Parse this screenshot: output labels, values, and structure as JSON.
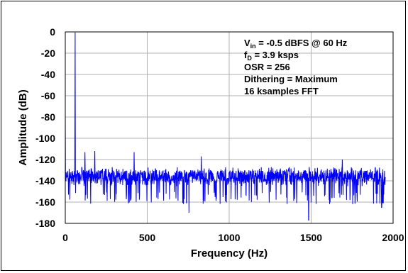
{
  "chart_data": {
    "type": "line",
    "title": "",
    "xlabel": "Frequency (Hz)",
    "ylabel": "Amplitude (dB)",
    "xlim": [
      0,
      2000
    ],
    "ylim": [
      -180,
      0
    ],
    "x_ticks": [
      "0",
      "500",
      "1000",
      "1500",
      "2000"
    ],
    "y_ticks": [
      "0",
      "-20",
      "-40",
      "-60",
      "-80",
      "-100",
      "-120",
      "-140",
      "-160",
      "-180"
    ],
    "grid": true,
    "series_color": "#0000ff",
    "annotations": [
      "V_in = -0.5 dBFS @ 60 Hz",
      "f_D = 3.9 ksps",
      "OSR = 256",
      "Dithering = Maximum",
      "16 ksamples FFT"
    ],
    "annotation_parts": {
      "vin_main": "V",
      "vin_sub": "in",
      "vin_rest": " = -0.5 dBFS @ 60 Hz",
      "fd_main": "f",
      "fd_sub": "D",
      "fd_rest": " = 3.9 ksps",
      "osr": "OSR = 256",
      "dither": "Dithering = Maximum",
      "fft": "16 ksamples FFT"
    },
    "fundamental": {
      "x": 60,
      "y": -0.5
    },
    "dc_bin": {
      "x": 0,
      "y": -76
    },
    "spurs": [
      {
        "x": 120,
        "y": -113
      },
      {
        "x": 180,
        "y": -112
      },
      {
        "x": 420,
        "y": -113
      },
      {
        "x": 830,
        "y": -117
      },
      {
        "x": 1690,
        "y": -120
      }
    ],
    "noise_floor": {
      "x_start": 0,
      "x_end": 1953,
      "typical": -135,
      "band_top": -127,
      "band_bottom": -145,
      "min_dip": -177
    },
    "noise_dips": [
      {
        "x": 755,
        "y": -170
      },
      {
        "x": 1485,
        "y": -177
      },
      {
        "x": 1930,
        "y": -165
      }
    ]
  }
}
